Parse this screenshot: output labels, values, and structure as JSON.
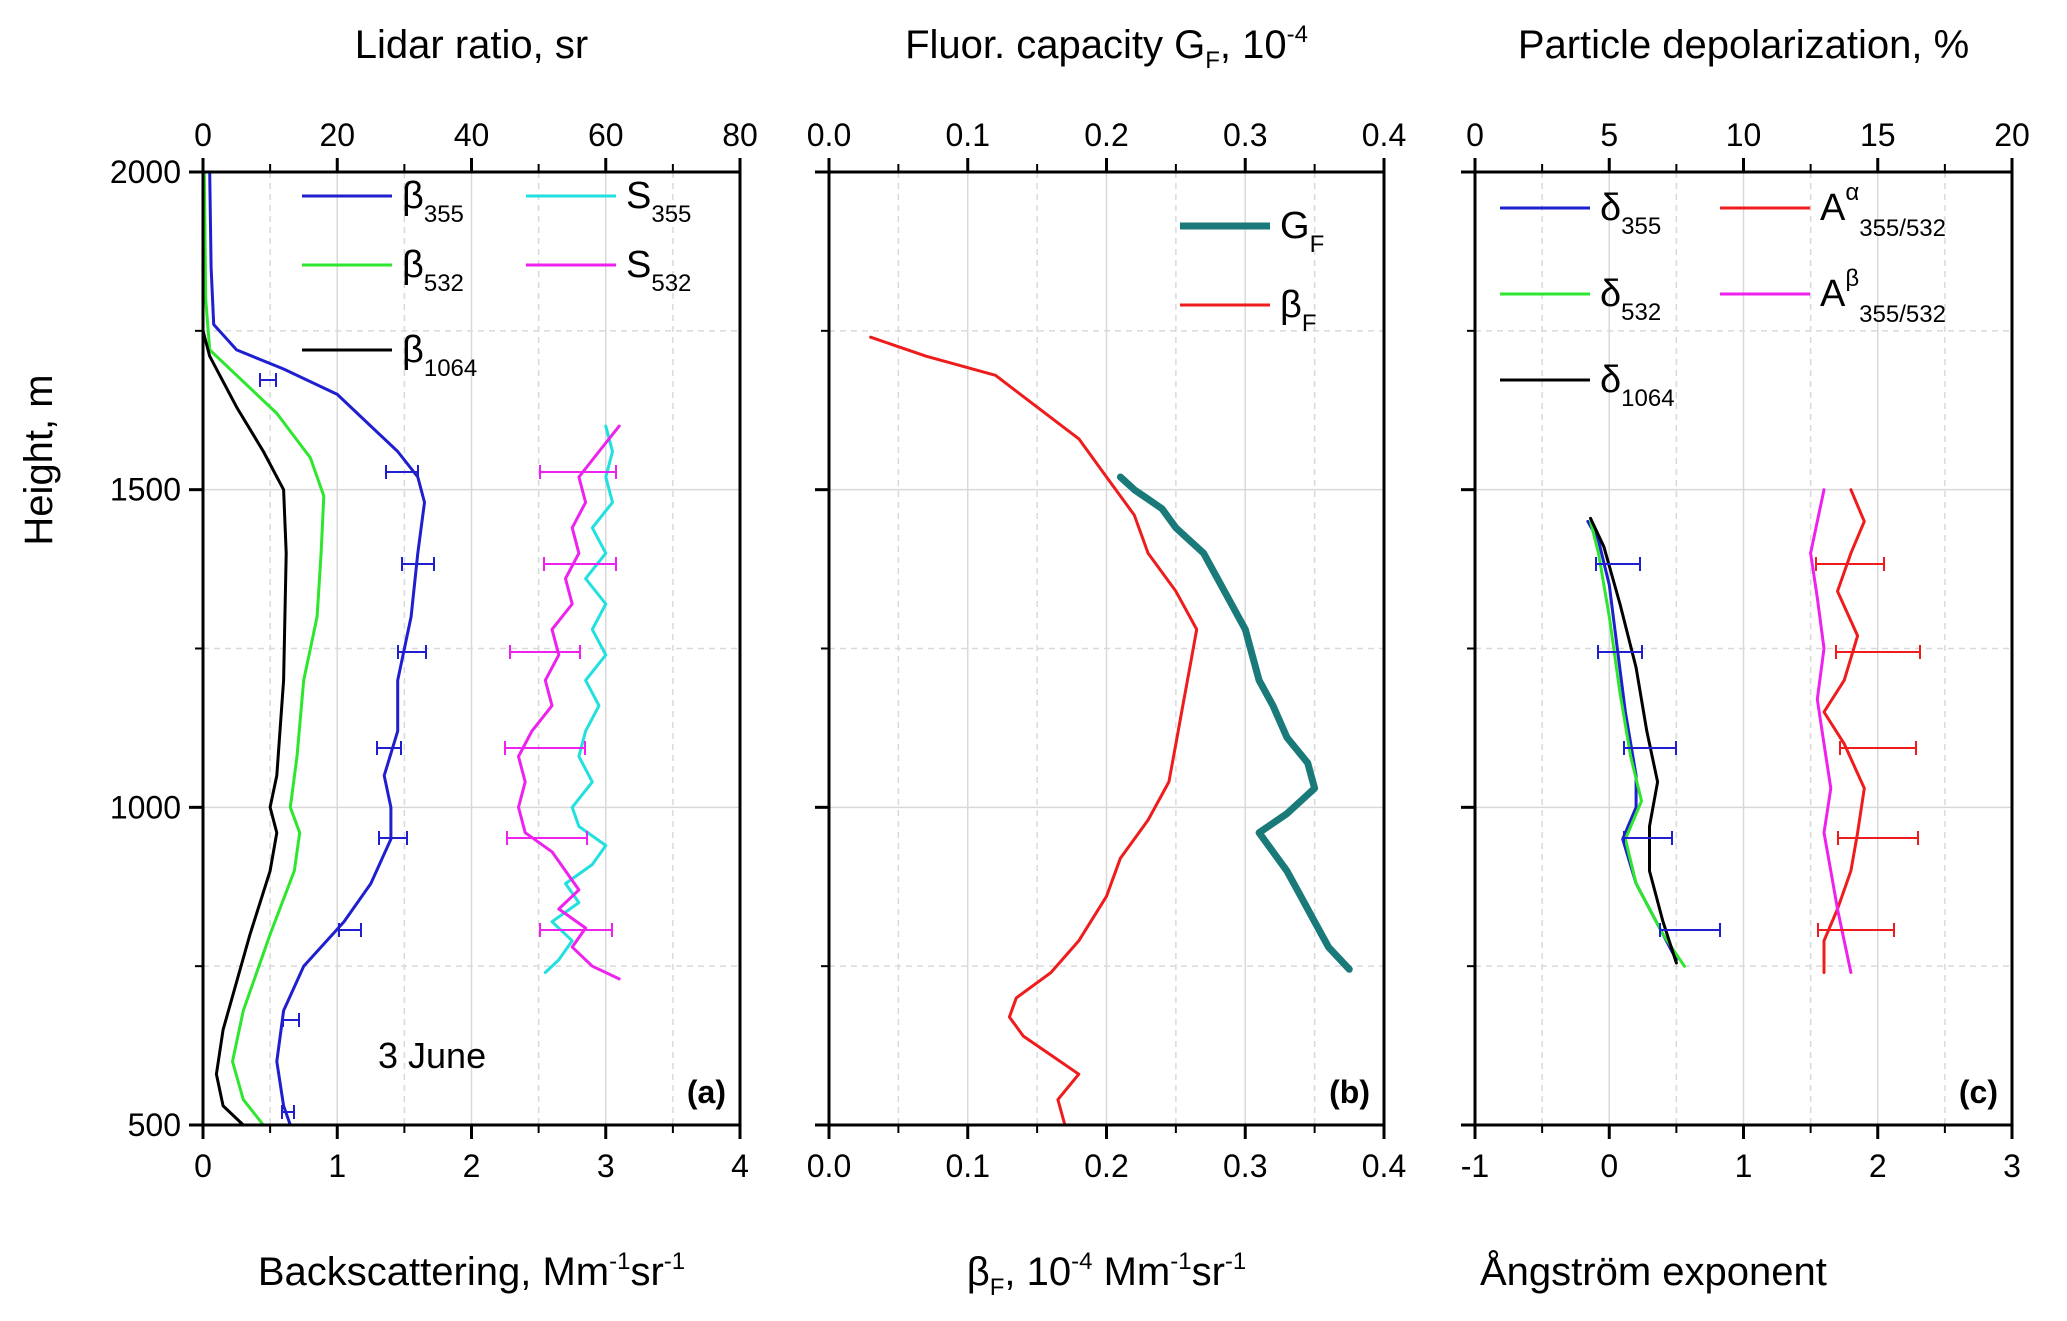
{
  "chart_data": [
    {
      "type": "line",
      "panel_label": "(a)",
      "annotation": "3 June",
      "xlabel": "Backscattering, Mm",
      "xlabel_sup1": "-1",
      "xlabel_mid": "sr",
      "xlabel_sup2": "-1",
      "x2label": "Lidar ratio, sr",
      "ylabel": "Height, m",
      "xlim": [
        0,
        4
      ],
      "x2lim": [
        0,
        80
      ],
      "ylim": [
        500,
        2000
      ],
      "xticks": [
        "0",
        "1",
        "2",
        "3",
        "4"
      ],
      "x2ticks": [
        "0",
        "20",
        "40",
        "60",
        "80"
      ],
      "yticks": [
        "500",
        "1000",
        "1500",
        "2000"
      ],
      "legend": [
        {
          "name": "β",
          "sub": "355",
          "color": "#1f1fd0"
        },
        {
          "name": "β",
          "sub": "532",
          "color": "#2ee62e"
        },
        {
          "name": "β",
          "sub": "1064",
          "color": "#000000"
        },
        {
          "name": "S",
          "sub": "355",
          "color": "#22e0e0"
        },
        {
          "name": "S",
          "sub": "532",
          "color": "#ee22ee"
        }
      ],
      "series": [
        {
          "name": "β355",
          "axis": "bottom",
          "color": "#1f1fd0",
          "points": [
            [
              0.65,
              500
            ],
            [
              0.6,
              530
            ],
            [
              0.55,
              600
            ],
            [
              0.6,
              680
            ],
            [
              0.75,
              750
            ],
            [
              1.05,
              820
            ],
            [
              1.25,
              880
            ],
            [
              1.4,
              950
            ],
            [
              1.4,
              1000
            ],
            [
              1.35,
              1050
            ],
            [
              1.45,
              1120
            ],
            [
              1.45,
              1200
            ],
            [
              1.55,
              1300
            ],
            [
              1.6,
              1400
            ],
            [
              1.65,
              1480
            ],
            [
              1.6,
              1520
            ],
            [
              1.45,
              1560
            ],
            [
              1.25,
              1600
            ],
            [
              1.0,
              1650
            ],
            [
              0.6,
              1690
            ],
            [
              0.25,
              1720
            ],
            [
              0.08,
              1760
            ],
            [
              0.06,
              1850
            ],
            [
              0.05,
              2000
            ]
          ]
        },
        {
          "name": "β532",
          "axis": "bottom",
          "color": "#2ee62e",
          "points": [
            [
              0.45,
              500
            ],
            [
              0.3,
              540
            ],
            [
              0.22,
              600
            ],
            [
              0.3,
              680
            ],
            [
              0.5,
              800
            ],
            [
              0.68,
              900
            ],
            [
              0.72,
              960
            ],
            [
              0.65,
              1000
            ],
            [
              0.7,
              1080
            ],
            [
              0.75,
              1200
            ],
            [
              0.85,
              1300
            ],
            [
              0.88,
              1400
            ],
            [
              0.9,
              1490
            ],
            [
              0.8,
              1550
            ],
            [
              0.55,
              1620
            ],
            [
              0.25,
              1680
            ],
            [
              0.05,
              1720
            ],
            [
              0.02,
              1800
            ],
            [
              0.01,
              2000
            ]
          ]
        },
        {
          "name": "β1064",
          "axis": "bottom",
          "color": "#000000",
          "points": [
            [
              0.3,
              500
            ],
            [
              0.15,
              530
            ],
            [
              0.1,
              580
            ],
            [
              0.15,
              650
            ],
            [
              0.35,
              800
            ],
            [
              0.5,
              900
            ],
            [
              0.55,
              960
            ],
            [
              0.5,
              1000
            ],
            [
              0.55,
              1050
            ],
            [
              0.6,
              1200
            ],
            [
              0.62,
              1400
            ],
            [
              0.6,
              1500
            ],
            [
              0.45,
              1560
            ],
            [
              0.25,
              1630
            ],
            [
              0.05,
              1710
            ],
            [
              0.0,
              1750
            ],
            [
              0.0,
              2000
            ]
          ]
        },
        {
          "name": "S355",
          "axis": "top",
          "color": "#22e0e0",
          "points": [
            [
              51,
              740
            ],
            [
              53,
              760
            ],
            [
              55,
              790
            ],
            [
              52,
              820
            ],
            [
              56,
              850
            ],
            [
              54,
              880
            ],
            [
              58,
              910
            ],
            [
              60,
              940
            ],
            [
              56,
              970
            ],
            [
              55,
              1000
            ],
            [
              58,
              1040
            ],
            [
              56,
              1080
            ],
            [
              57,
              1120
            ],
            [
              59,
              1160
            ],
            [
              57,
              1200
            ],
            [
              60,
              1240
            ],
            [
              58,
              1280
            ],
            [
              60,
              1320
            ],
            [
              57,
              1360
            ],
            [
              60,
              1400
            ],
            [
              58,
              1440
            ],
            [
              61,
              1480
            ],
            [
              60,
              1520
            ],
            [
              61,
              1560
            ],
            [
              60,
              1600
            ]
          ]
        },
        {
          "name": "S532",
          "axis": "top",
          "color": "#ee22ee",
          "points": [
            [
              62,
              730
            ],
            [
              58,
              750
            ],
            [
              55,
              780
            ],
            [
              57,
              810
            ],
            [
              53,
              840
            ],
            [
              56,
              870
            ],
            [
              54,
              900
            ],
            [
              52,
              930
            ],
            [
              48,
              960
            ],
            [
              47,
              1000
            ],
            [
              48,
              1040
            ],
            [
              47,
              1080
            ],
            [
              49,
              1120
            ],
            [
              52,
              1160
            ],
            [
              51,
              1200
            ],
            [
              53,
              1240
            ],
            [
              52,
              1280
            ],
            [
              55,
              1320
            ],
            [
              54,
              1360
            ],
            [
              56,
              1400
            ],
            [
              55,
              1440
            ],
            [
              57,
              1480
            ],
            [
              56,
              1520
            ],
            [
              59,
              1560
            ],
            [
              62,
              1600
            ]
          ]
        }
      ]
    },
    {
      "type": "line",
      "panel_label": "(b)",
      "xlabel": "β",
      "xlabel_sub": "F",
      "xlabel_rest": ", 10",
      "xlabel_sup1": "-4",
      "xlabel_mid": " Mm",
      "xlabel_sup2": "-1",
      "xlabel_end": "sr",
      "xlabel_sup3": "-1",
      "x2label": "Fluor. capacity G",
      "x2label_sub": "F",
      "x2label_rest": ", 10",
      "x2label_sup": "-4",
      "xlim": [
        0.0,
        0.4
      ],
      "x2lim": [
        0.0,
        0.4
      ],
      "ylim": [
        500,
        2000
      ],
      "xticks": [
        "0.0",
        "0.1",
        "0.2",
        "0.3",
        "0.4"
      ],
      "x2ticks": [
        "0.0",
        "0.1",
        "0.2",
        "0.3",
        "0.4"
      ],
      "legend": [
        {
          "name": "G",
          "sub": "F",
          "color": "#1a7a7a"
        },
        {
          "name": "β",
          "sub": "F",
          "color": "#ee1c1c"
        }
      ],
      "series": [
        {
          "name": "GF",
          "axis": "top",
          "color": "#1a7a7a",
          "points": [
            [
              0.375,
              745
            ],
            [
              0.36,
              780
            ],
            [
              0.35,
              820
            ],
            [
              0.34,
              860
            ],
            [
              0.33,
              900
            ],
            [
              0.32,
              930
            ],
            [
              0.31,
              960
            ],
            [
              0.33,
              990
            ],
            [
              0.35,
              1030
            ],
            [
              0.345,
              1070
            ],
            [
              0.33,
              1110
            ],
            [
              0.32,
              1160
            ],
            [
              0.31,
              1200
            ],
            [
              0.305,
              1240
            ],
            [
              0.3,
              1280
            ],
            [
              0.29,
              1320
            ],
            [
              0.28,
              1360
            ],
            [
              0.27,
              1400
            ],
            [
              0.25,
              1440
            ],
            [
              0.24,
              1470
            ],
            [
              0.22,
              1500
            ],
            [
              0.21,
              1520
            ]
          ]
        },
        {
          "name": "betaF",
          "axis": "bottom",
          "color": "#ee1c1c",
          "points": [
            [
              0.17,
              500
            ],
            [
              0.165,
              540
            ],
            [
              0.18,
              580
            ],
            [
              0.16,
              610
            ],
            [
              0.14,
              640
            ],
            [
              0.13,
              670
            ],
            [
              0.135,
              700
            ],
            [
              0.16,
              740
            ],
            [
              0.18,
              790
            ],
            [
              0.2,
              860
            ],
            [
              0.21,
              920
            ],
            [
              0.23,
              980
            ],
            [
              0.245,
              1040
            ],
            [
              0.25,
              1100
            ],
            [
              0.255,
              1160
            ],
            [
              0.26,
              1220
            ],
            [
              0.265,
              1280
            ],
            [
              0.25,
              1340
            ],
            [
              0.23,
              1400
            ],
            [
              0.22,
              1460
            ],
            [
              0.2,
              1520
            ],
            [
              0.18,
              1580
            ],
            [
              0.15,
              1630
            ],
            [
              0.12,
              1680
            ],
            [
              0.07,
              1710
            ],
            [
              0.03,
              1740
            ]
          ]
        }
      ]
    },
    {
      "type": "line",
      "panel_label": "(c)",
      "xlabel": "Ångström exponent",
      "x2label": "Particle depolarization, %",
      "xlim": [
        -1,
        3
      ],
      "x2lim": [
        0,
        20
      ],
      "ylim": [
        500,
        2000
      ],
      "xticks": [
        "-1",
        "0",
        "1",
        "2",
        "3"
      ],
      "x2ticks": [
        "0",
        "5",
        "10",
        "15",
        "20"
      ],
      "legend": [
        {
          "name": "δ",
          "sub": "355",
          "color": "#1f1fd0"
        },
        {
          "name": "δ",
          "sub": "532",
          "color": "#2ee62e"
        },
        {
          "name": "δ",
          "sub": "1064",
          "color": "#000000"
        },
        {
          "name": "A",
          "sup": "α",
          "sub": "355/532",
          "color": "#ee1c1c"
        },
        {
          "name": "A",
          "sup": "β",
          "sub": "355/532",
          "color": "#ee22ee"
        }
      ],
      "series": [
        {
          "name": "δ355",
          "axis": "top",
          "color": "#1f1fd0",
          "points": [
            [
              7.5,
              760
            ],
            [
              7.0,
              800
            ],
            [
              6.0,
              880
            ],
            [
              5.5,
              950
            ],
            [
              6.0,
              1000
            ],
            [
              6.0,
              1050
            ],
            [
              5.6,
              1150
            ],
            [
              5.3,
              1250
            ],
            [
              5.0,
              1350
            ],
            [
              4.6,
              1420
            ],
            [
              4.2,
              1450
            ]
          ]
        },
        {
          "name": "δ532",
          "axis": "top",
          "color": "#2ee62e",
          "points": [
            [
              7.8,
              750
            ],
            [
              7.0,
              800
            ],
            [
              6.0,
              880
            ],
            [
              5.6,
              950
            ],
            [
              6.2,
              1010
            ],
            [
              5.8,
              1080
            ],
            [
              5.4,
              1180
            ],
            [
              5.0,
              1300
            ],
            [
              4.6,
              1400
            ],
            [
              4.3,
              1450
            ]
          ]
        },
        {
          "name": "δ1064",
          "axis": "top",
          "color": "#000000",
          "points": [
            [
              7.5,
              755
            ],
            [
              7.0,
              820
            ],
            [
              6.5,
              900
            ],
            [
              6.5,
              970
            ],
            [
              6.8,
              1040
            ],
            [
              6.4,
              1120
            ],
            [
              6.0,
              1220
            ],
            [
              5.4,
              1320
            ],
            [
              4.8,
              1410
            ],
            [
              4.3,
              1455
            ]
          ]
        },
        {
          "name": "Aα",
          "axis": "bottom",
          "color": "#ee1c1c",
          "points": [
            [
              1.6,
              740
            ],
            [
              1.6,
              790
            ],
            [
              1.7,
              840
            ],
            [
              1.8,
              900
            ],
            [
              1.85,
              960
            ],
            [
              1.9,
              1030
            ],
            [
              1.75,
              1100
            ],
            [
              1.6,
              1150
            ],
            [
              1.75,
              1200
            ],
            [
              1.85,
              1270
            ],
            [
              1.7,
              1340
            ],
            [
              1.8,
              1400
            ],
            [
              1.9,
              1450
            ],
            [
              1.8,
              1500
            ]
          ]
        },
        {
          "name": "Aβ",
          "axis": "bottom",
          "color": "#ee22ee",
          "points": [
            [
              1.8,
              740
            ],
            [
              1.75,
              790
            ],
            [
              1.7,
              840
            ],
            [
              1.65,
              900
            ],
            [
              1.6,
              960
            ],
            [
              1.65,
              1030
            ],
            [
              1.6,
              1100
            ],
            [
              1.55,
              1170
            ],
            [
              1.6,
              1250
            ],
            [
              1.55,
              1330
            ],
            [
              1.5,
              1400
            ],
            [
              1.55,
              1450
            ],
            [
              1.6,
              1500
            ]
          ]
        }
      ]
    }
  ]
}
